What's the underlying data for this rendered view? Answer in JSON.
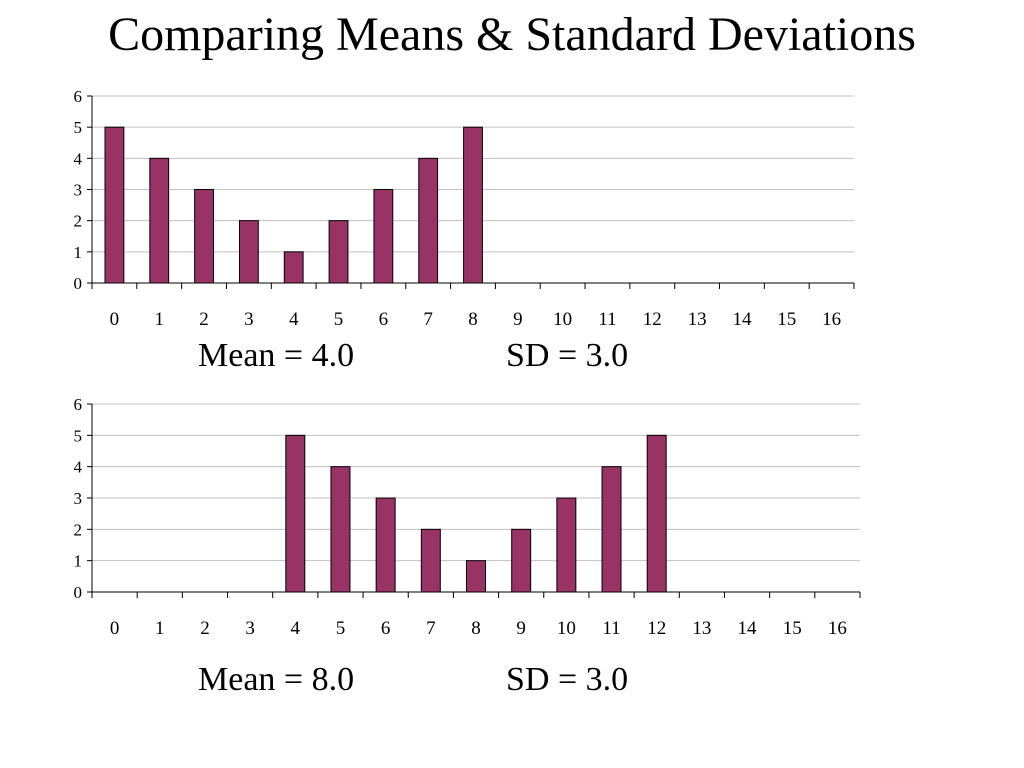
{
  "title": "Comparing Means & Standard Deviations",
  "colors": {
    "bar": "#993366",
    "bar_edge": "#000000",
    "grid": "#c0c0c0",
    "axis": "#000000"
  },
  "charts": [
    {
      "mean_label": "Mean = 4.0",
      "sd_label": "SD = 3.0"
    },
    {
      "mean_label": "Mean = 8.0",
      "sd_label": "SD = 3.0"
    }
  ],
  "chart_data": [
    {
      "type": "bar",
      "categories": [
        "0",
        "1",
        "2",
        "3",
        "4",
        "5",
        "6",
        "7",
        "8",
        "9",
        "10",
        "11",
        "12",
        "13",
        "14",
        "15",
        "16"
      ],
      "values": [
        5,
        4,
        3,
        2,
        1,
        2,
        3,
        4,
        5,
        0,
        0,
        0,
        0,
        0,
        0,
        0,
        0
      ],
      "ylim": [
        0,
        6
      ],
      "yticks": [
        "0",
        "1",
        "2",
        "3",
        "4",
        "5",
        "6"
      ],
      "grid": true,
      "annotations": [
        "Mean = 4.0",
        "SD = 3.0"
      ]
    },
    {
      "type": "bar",
      "categories": [
        "0",
        "1",
        "2",
        "3",
        "4",
        "5",
        "6",
        "7",
        "8",
        "9",
        "10",
        "11",
        "12",
        "13",
        "14",
        "15",
        "16"
      ],
      "values": [
        0,
        0,
        0,
        0,
        5,
        4,
        3,
        2,
        1,
        2,
        3,
        4,
        5,
        0,
        0,
        0,
        0
      ],
      "ylim": [
        0,
        6
      ],
      "yticks": [
        "0",
        "1",
        "2",
        "3",
        "4",
        "5",
        "6"
      ],
      "grid": true,
      "annotations": [
        "Mean = 8.0",
        "SD = 3.0"
      ]
    }
  ]
}
